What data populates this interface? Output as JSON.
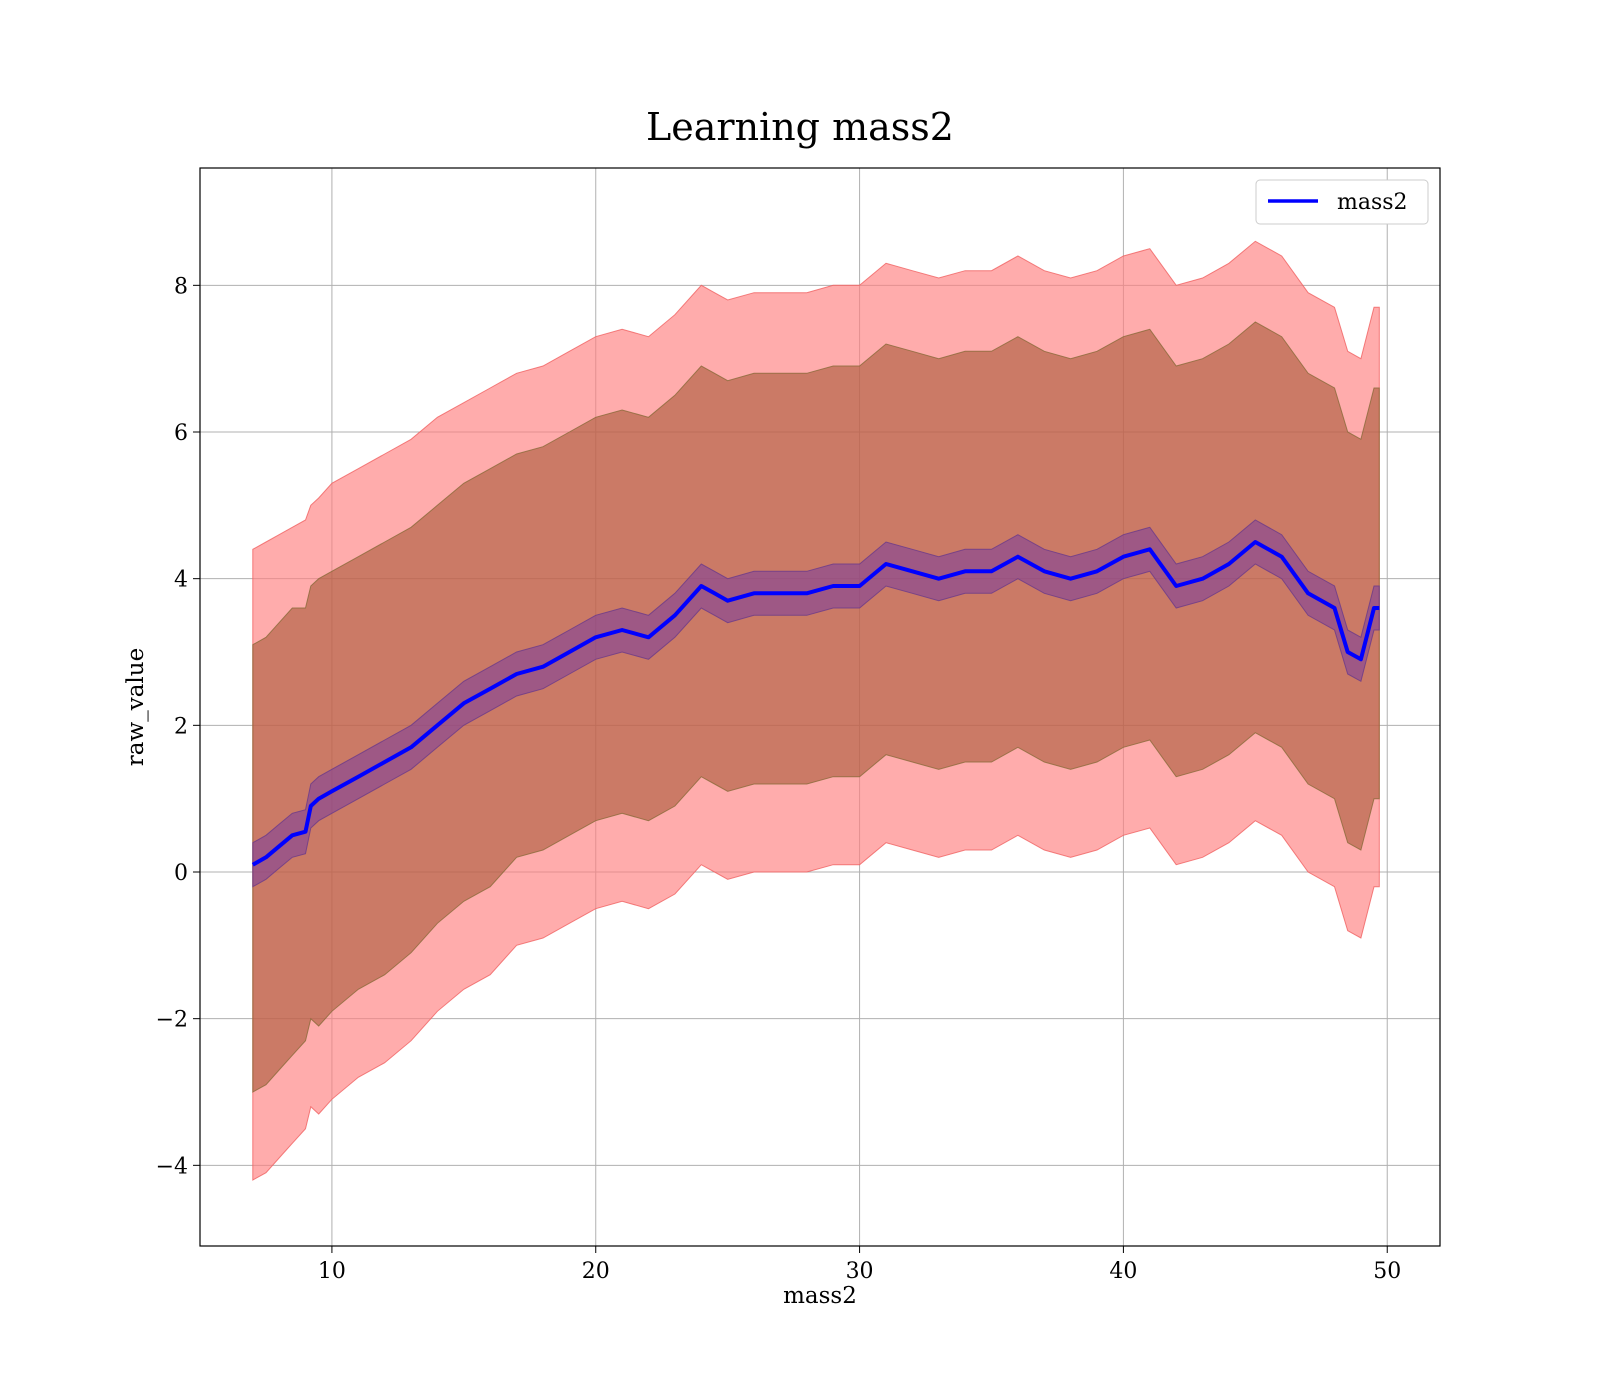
{
  "chart_data": {
    "type": "line",
    "title": "Learning mass2",
    "xlabel": "mass2",
    "ylabel": "raw_value",
    "xlim": [
      5,
      52
    ],
    "ylim": [
      -5.1,
      9.6
    ],
    "xticks": [
      10,
      20,
      30,
      40,
      50
    ],
    "yticks": [
      -4,
      -2,
      0,
      2,
      4,
      6,
      8
    ],
    "xtick_labels": [
      "10",
      "20",
      "30",
      "40",
      "50"
    ],
    "ytick_labels": [
      "−4",
      "−2",
      "0",
      "2",
      "4",
      "6",
      "8"
    ],
    "grid": true,
    "legend": {
      "position": "top-right",
      "entries": [
        "mass2"
      ]
    },
    "colors": {
      "line": "#0000ff",
      "band_outer": "#ff8080",
      "band_inner": "#a0522d",
      "band_mean": "#7a3c9e"
    },
    "series": [
      {
        "name": "mass2",
        "x": [
          7,
          7.5,
          8,
          8.5,
          9,
          9.2,
          9.5,
          10,
          11,
          12,
          13,
          14,
          15,
          16,
          17,
          18,
          19,
          20,
          21,
          22,
          23,
          24,
          24.5,
          25,
          26,
          27,
          28,
          29,
          30,
          31,
          32,
          33,
          34,
          35,
          36,
          37,
          38,
          39,
          40,
          41,
          42,
          43,
          44,
          45,
          46,
          47,
          48,
          48.5,
          49,
          49.5,
          49.7
        ],
        "y": [
          0.1,
          0.2,
          0.35,
          0.5,
          0.55,
          0.9,
          1.0,
          1.1,
          1.3,
          1.5,
          1.7,
          2.0,
          2.3,
          2.5,
          2.7,
          2.8,
          3.0,
          3.2,
          3.3,
          3.2,
          3.5,
          3.9,
          3.8,
          3.7,
          3.8,
          3.8,
          3.8,
          3.9,
          3.9,
          4.2,
          4.1,
          4.0,
          4.1,
          4.1,
          4.3,
          4.1,
          4.0,
          4.1,
          4.3,
          4.4,
          3.9,
          4.0,
          4.2,
          4.5,
          4.3,
          3.8,
          3.6,
          3.0,
          2.9,
          3.6,
          3.6
        ]
      }
    ],
    "bands": [
      {
        "kind": "outer",
        "lower": [
          -4.2,
          -4.1,
          -3.9,
          -3.7,
          -3.5,
          -3.2,
          -3.3,
          -3.1,
          -2.8,
          -2.6,
          -2.3,
          -1.9,
          -1.6,
          -1.4,
          -1.0,
          -0.9,
          -0.7,
          -0.5,
          -0.4,
          -0.5,
          -0.3,
          0.1,
          0.0,
          -0.1,
          0.0,
          0.0,
          0.0,
          0.1,
          0.1,
          0.4,
          0.3,
          0.2,
          0.3,
          0.3,
          0.5,
          0.3,
          0.2,
          0.3,
          0.5,
          0.6,
          0.1,
          0.2,
          0.4,
          0.7,
          0.5,
          0.0,
          -0.2,
          -0.8,
          -0.9,
          -0.2,
          -0.2
        ],
        "upper": [
          4.4,
          4.5,
          4.6,
          4.7,
          4.8,
          5.0,
          5.1,
          5.3,
          5.5,
          5.7,
          5.9,
          6.2,
          6.4,
          6.6,
          6.8,
          6.9,
          7.1,
          7.3,
          7.4,
          7.3,
          7.6,
          8.0,
          7.9,
          7.8,
          7.9,
          7.9,
          7.9,
          8.0,
          8.0,
          8.3,
          8.2,
          8.1,
          8.2,
          8.2,
          8.4,
          8.2,
          8.1,
          8.2,
          8.4,
          8.5,
          8.0,
          8.1,
          8.3,
          8.6,
          8.4,
          7.9,
          7.7,
          7.1,
          7.0,
          7.7,
          7.7
        ]
      },
      {
        "kind": "inner",
        "lower": [
          -3.0,
          -2.9,
          -2.7,
          -2.5,
          -2.3,
          -2.0,
          -2.1,
          -1.9,
          -1.6,
          -1.4,
          -1.1,
          -0.7,
          -0.4,
          -0.2,
          0.2,
          0.3,
          0.5,
          0.7,
          0.8,
          0.7,
          0.9,
          1.3,
          1.2,
          1.1,
          1.2,
          1.2,
          1.2,
          1.3,
          1.3,
          1.6,
          1.5,
          1.4,
          1.5,
          1.5,
          1.7,
          1.5,
          1.4,
          1.5,
          1.7,
          1.8,
          1.3,
          1.4,
          1.6,
          1.9,
          1.7,
          1.2,
          1.0,
          0.4,
          0.3,
          1.0,
          1.0
        ],
        "upper": [
          3.1,
          3.2,
          3.4,
          3.6,
          3.6,
          3.9,
          4.0,
          4.1,
          4.3,
          4.5,
          4.7,
          5.0,
          5.3,
          5.5,
          5.7,
          5.8,
          6.0,
          6.2,
          6.3,
          6.2,
          6.5,
          6.9,
          6.8,
          6.7,
          6.8,
          6.8,
          6.8,
          6.9,
          6.9,
          7.2,
          7.1,
          7.0,
          7.1,
          7.1,
          7.3,
          7.1,
          7.0,
          7.1,
          7.3,
          7.4,
          6.9,
          7.0,
          7.2,
          7.5,
          7.3,
          6.8,
          6.6,
          6.0,
          5.9,
          6.6,
          6.6
        ]
      },
      {
        "kind": "mean",
        "lower": [
          -0.2,
          -0.1,
          0.05,
          0.2,
          0.25,
          0.6,
          0.7,
          0.8,
          1.0,
          1.2,
          1.4,
          1.7,
          2.0,
          2.2,
          2.4,
          2.5,
          2.7,
          2.9,
          3.0,
          2.9,
          3.2,
          3.6,
          3.5,
          3.4,
          3.5,
          3.5,
          3.5,
          3.6,
          3.6,
          3.9,
          3.8,
          3.7,
          3.8,
          3.8,
          4.0,
          3.8,
          3.7,
          3.8,
          4.0,
          4.1,
          3.6,
          3.7,
          3.9,
          4.2,
          4.0,
          3.5,
          3.3,
          2.7,
          2.6,
          3.3,
          3.3
        ],
        "upper": [
          0.4,
          0.5,
          0.65,
          0.8,
          0.85,
          1.2,
          1.3,
          1.4,
          1.6,
          1.8,
          2.0,
          2.3,
          2.6,
          2.8,
          3.0,
          3.1,
          3.3,
          3.5,
          3.6,
          3.5,
          3.8,
          4.2,
          4.1,
          4.0,
          4.1,
          4.1,
          4.1,
          4.2,
          4.2,
          4.5,
          4.4,
          4.3,
          4.4,
          4.4,
          4.6,
          4.4,
          4.3,
          4.4,
          4.6,
          4.7,
          4.2,
          4.3,
          4.5,
          4.8,
          4.6,
          4.1,
          3.9,
          3.3,
          3.2,
          3.9,
          3.9
        ]
      }
    ]
  }
}
